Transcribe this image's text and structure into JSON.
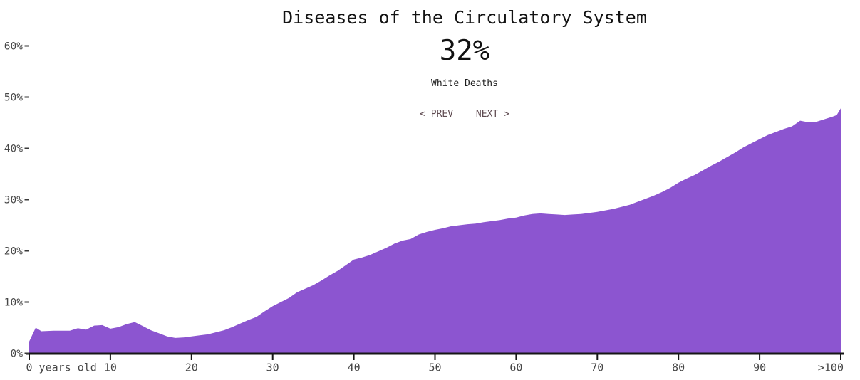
{
  "header": {
    "title": "Diseases of the Circulatory System",
    "value": "32%",
    "subtitle": "White Deaths",
    "nav": {
      "prev_label": "< PREV",
      "next_label": "NEXT >"
    }
  },
  "colors": {
    "background": "#ffffff",
    "area_fill": "#8c55d0",
    "axis": "#161616",
    "y_dash": "#3a3a3a",
    "tick_label": "#474747",
    "title_text": "#131313",
    "nav_link": "#5f4b51"
  },
  "chart_data": {
    "type": "area",
    "title": "Diseases of the Circulatory System",
    "center_value": "32%",
    "series_name": "White Deaths",
    "xlim": [
      0,
      100
    ],
    "ylim": [
      0,
      62
    ],
    "grid": false,
    "legend": false,
    "x_ticks": [
      {
        "v": 0,
        "label": "0 years old"
      },
      {
        "v": 10,
        "label": "10"
      },
      {
        "v": 20,
        "label": "20"
      },
      {
        "v": 30,
        "label": "30"
      },
      {
        "v": 40,
        "label": "40"
      },
      {
        "v": 50,
        "label": "50"
      },
      {
        "v": 60,
        "label": "60"
      },
      {
        "v": 70,
        "label": "70"
      },
      {
        "v": 80,
        "label": "80"
      },
      {
        "v": 90,
        "label": "90"
      },
      {
        "v": 100,
        "label": ">100"
      }
    ],
    "y_ticks": [
      {
        "v": 0,
        "label": "0%"
      },
      {
        "v": 10,
        "label": "10%"
      },
      {
        "v": 20,
        "label": "20%"
      },
      {
        "v": 30,
        "label": "30%"
      },
      {
        "v": 40,
        "label": "40%"
      },
      {
        "v": 50,
        "label": "50%"
      },
      {
        "v": 60,
        "label": "60%"
      }
    ],
    "points": [
      [
        0,
        2.3
      ],
      [
        0.8,
        5.0
      ],
      [
        1.5,
        4.3
      ],
      [
        3,
        4.4
      ],
      [
        5,
        4.4
      ],
      [
        6,
        4.9
      ],
      [
        7,
        4.6
      ],
      [
        8,
        5.4
      ],
      [
        9,
        5.5
      ],
      [
        10,
        4.8
      ],
      [
        11,
        5.1
      ],
      [
        12,
        5.7
      ],
      [
        13,
        6.1
      ],
      [
        14,
        5.3
      ],
      [
        15,
        4.5
      ],
      [
        16,
        3.9
      ],
      [
        17,
        3.3
      ],
      [
        18,
        3.0
      ],
      [
        19,
        3.1
      ],
      [
        20,
        3.3
      ],
      [
        21,
        3.5
      ],
      [
        22,
        3.7
      ],
      [
        23,
        4.1
      ],
      [
        24,
        4.5
      ],
      [
        25,
        5.1
      ],
      [
        26,
        5.8
      ],
      [
        27,
        6.5
      ],
      [
        28,
        7.1
      ],
      [
        29,
        8.2
      ],
      [
        30,
        9.2
      ],
      [
        31,
        10.0
      ],
      [
        32,
        10.8
      ],
      [
        33,
        11.9
      ],
      [
        34,
        12.6
      ],
      [
        35,
        13.3
      ],
      [
        36,
        14.2
      ],
      [
        37,
        15.2
      ],
      [
        38,
        16.1
      ],
      [
        39,
        17.2
      ],
      [
        40,
        18.3
      ],
      [
        41,
        18.7
      ],
      [
        42,
        19.2
      ],
      [
        43,
        19.9
      ],
      [
        44,
        20.6
      ],
      [
        45,
        21.4
      ],
      [
        46,
        22.0
      ],
      [
        47,
        22.3
      ],
      [
        48,
        23.2
      ],
      [
        49,
        23.7
      ],
      [
        50,
        24.1
      ],
      [
        51,
        24.4
      ],
      [
        52,
        24.8
      ],
      [
        53,
        25.0
      ],
      [
        54,
        25.2
      ],
      [
        55,
        25.3
      ],
      [
        56,
        25.6
      ],
      [
        57,
        25.8
      ],
      [
        58,
        26.0
      ],
      [
        59,
        26.3
      ],
      [
        60,
        26.5
      ],
      [
        61,
        26.9
      ],
      [
        62,
        27.2
      ],
      [
        63,
        27.3
      ],
      [
        64,
        27.2
      ],
      [
        65,
        27.1
      ],
      [
        66,
        27.0
      ],
      [
        67,
        27.1
      ],
      [
        68,
        27.2
      ],
      [
        69,
        27.4
      ],
      [
        70,
        27.6
      ],
      [
        71,
        27.9
      ],
      [
        72,
        28.2
      ],
      [
        73,
        28.6
      ],
      [
        74,
        29.0
      ],
      [
        75,
        29.6
      ],
      [
        76,
        30.2
      ],
      [
        77,
        30.8
      ],
      [
        78,
        31.5
      ],
      [
        79,
        32.3
      ],
      [
        80,
        33.3
      ],
      [
        81,
        34.1
      ],
      [
        82,
        34.8
      ],
      [
        83,
        35.7
      ],
      [
        84,
        36.6
      ],
      [
        85,
        37.4
      ],
      [
        86,
        38.3
      ],
      [
        87,
        39.2
      ],
      [
        88,
        40.2
      ],
      [
        89,
        41.0
      ],
      [
        90,
        41.8
      ],
      [
        91,
        42.6
      ],
      [
        92,
        43.2
      ],
      [
        93,
        43.8
      ],
      [
        94,
        44.3
      ],
      [
        95,
        45.4
      ],
      [
        96,
        45.1
      ],
      [
        97,
        45.2
      ],
      [
        98,
        45.7
      ],
      [
        99,
        46.2
      ],
      [
        99.5,
        46.5
      ],
      [
        100,
        47.8
      ]
    ]
  }
}
